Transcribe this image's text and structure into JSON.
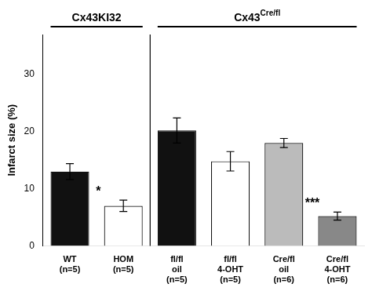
{
  "chart_data": {
    "type": "bar",
    "categories": [
      "WT\n(n=5)",
      "HOM\n(n=5)",
      "fl/fl\noil\n(n=5)",
      "fl/fl\n4-OHT\n(n=5)",
      "Cre/fl\noil\n(n=6)",
      "Cre/fl\n4-OHT\n(n=6)"
    ],
    "values": [
      13.0,
      7.0,
      20.2,
      14.8,
      18.0,
      5.2
    ],
    "errors": [
      1.4,
      1.0,
      2.2,
      1.7,
      0.8,
      0.7
    ],
    "colors": [
      "#111111",
      "#ffffff",
      "#111111",
      "#ffffff",
      "#bbbbbb",
      "#888888"
    ],
    "ylabel": "Infarct size (%)",
    "ylim": [
      0,
      37
    ],
    "yticks": [
      0,
      10,
      20,
      30
    ],
    "grid": false,
    "annotations": [
      {
        "text": "*",
        "category": "HOM\n(n=5)"
      },
      {
        "text": "***",
        "category": "Cre/fl\n4-OHT\n(n=6)"
      }
    ],
    "groups": [
      {
        "text": "Cx43KI32",
        "categories": [
          "WT\n(n=5)",
          "HOM\n(n=5)"
        ]
      },
      {
        "text": "Cx43",
        "superscript": "Cre/fl",
        "categories": [
          "fl/fl\noil\n(n=5)",
          "fl/fl\n4-OHT\n(n=5)",
          "Cre/fl\noil\n(n=6)",
          "Cre/fl\n4-OHT\n(n=6)"
        ]
      }
    ]
  }
}
